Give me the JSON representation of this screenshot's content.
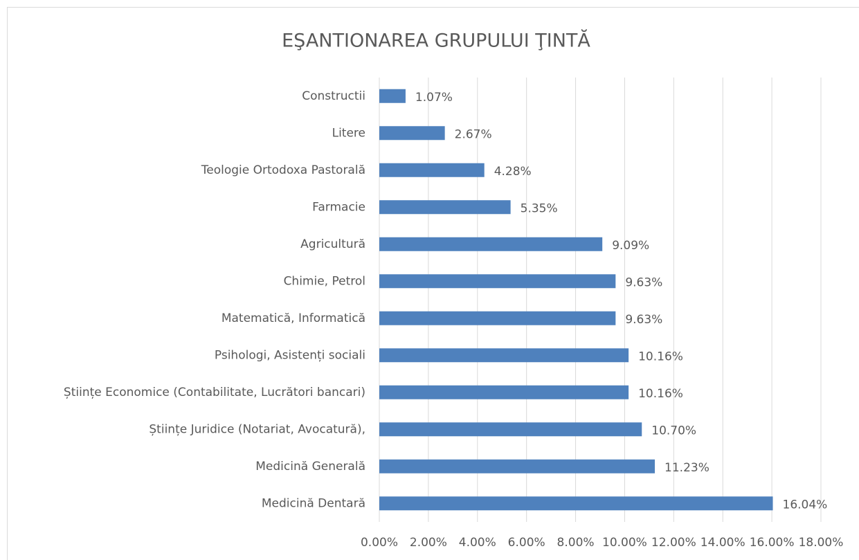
{
  "chart_data": {
    "type": "bar",
    "orientation": "horizontal",
    "title": "EŞANTIONAREA GRUPULUI ŢINTĂ",
    "categories": [
      "Constructii",
      "Litere",
      "Teologie Ortodoxa Pastorală",
      "Farmacie",
      "Agricultură",
      "Chimie, Petrol",
      "Matematică, Informatică",
      "Psihologi, Asistenți sociali",
      "Științe Economice (Contabilitate, Lucrători bancari)",
      "Științe Juridice (Notariat, Avocatură),",
      "Medicină Generală",
      "Medicină Dentară"
    ],
    "values": [
      1.07,
      2.67,
      4.28,
      5.35,
      9.09,
      9.63,
      9.63,
      10.16,
      10.16,
      10.7,
      11.23,
      16.04
    ],
    "value_labels": [
      "1.07%",
      "2.67%",
      "4.28%",
      "5.35%",
      "9.09%",
      "9.63%",
      "9.63%",
      "10.16%",
      "10.16%",
      "10.70%",
      "11.23%",
      "16.04%"
    ],
    "color": "#4f81bd",
    "xlim": [
      0,
      18
    ],
    "xticks": [
      {
        "value": 0,
        "label": "0.00%"
      },
      {
        "value": 2,
        "label": "2.00%"
      },
      {
        "value": 4,
        "label": "4.00%"
      },
      {
        "value": 6,
        "label": "6.00%"
      },
      {
        "value": 8,
        "label": "8.00%"
      },
      {
        "value": 10,
        "label": "10.00%"
      },
      {
        "value": 12,
        "label": "12.00%"
      },
      {
        "value": 14,
        "label": "14.00%"
      },
      {
        "value": 16,
        "label": "16.00%"
      },
      {
        "value": 18,
        "label": "18.00%"
      }
    ],
    "grid": true
  }
}
